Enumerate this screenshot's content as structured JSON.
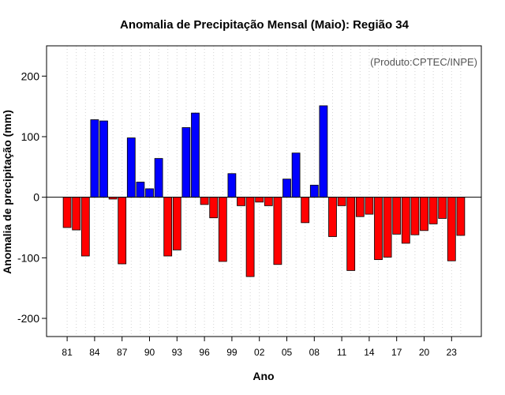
{
  "chart_data": {
    "type": "bar",
    "title": "Anomalia de Precipitação Mensal (Maio): Região 34",
    "xlabel": "Ano",
    "ylabel": "Anomalia de precipitação (mm)",
    "credit": "(Produto:CPTEC/INPE)",
    "ylim": [
      -230,
      250
    ],
    "yticks": [
      -200,
      -100,
      0,
      100,
      200
    ],
    "grid": true,
    "colors": {
      "positive": "#0000ff",
      "negative": "#ff0000",
      "edge": "#000000"
    },
    "x": [
      1981,
      1982,
      1983,
      1984,
      1985,
      1986,
      1987,
      1988,
      1989,
      1990,
      1991,
      1992,
      1993,
      1994,
      1995,
      1996,
      1997,
      1998,
      1999,
      2000,
      2001,
      2002,
      2003,
      2004,
      2005,
      2006,
      2007,
      2008,
      2009,
      2010,
      2011,
      2012,
      2013,
      2014,
      2015,
      2016,
      2017,
      2018,
      2019,
      2020,
      2021,
      2022,
      2023,
      2024
    ],
    "values": [
      -50,
      -54,
      -97,
      128,
      126,
      -3,
      -110,
      98,
      25,
      14,
      64,
      -97,
      -87,
      115,
      139,
      -12,
      -34,
      -106,
      39,
      -14,
      -131,
      -8,
      -14,
      -111,
      30,
      73,
      -42,
      20,
      151,
      -65,
      -14,
      -121,
      -32,
      -28,
      -103,
      -99,
      -61,
      -76,
      -62,
      -55,
      -44,
      -35,
      -105,
      -63
    ],
    "categories": [
      "81",
      "84",
      "87",
      "90",
      "93",
      "96",
      "99",
      "02",
      "05",
      "08",
      "11",
      "14",
      "17",
      "20",
      "23"
    ]
  }
}
